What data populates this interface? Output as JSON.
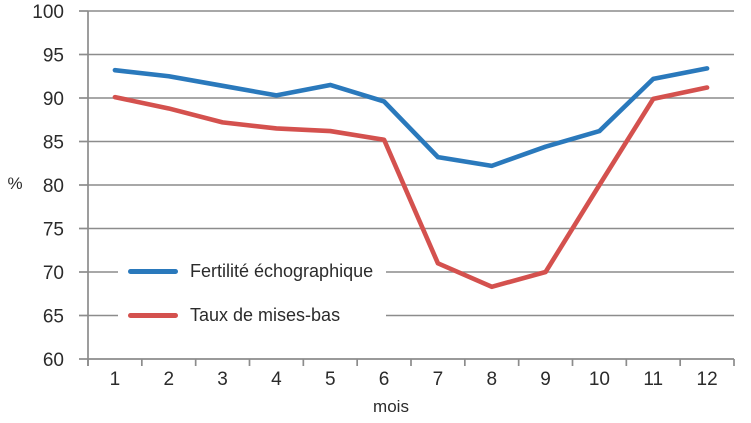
{
  "chart_data": {
    "type": "line",
    "x": [
      "1",
      "2",
      "3",
      "4",
      "5",
      "6",
      "7",
      "8",
      "9",
      "10",
      "11",
      "12"
    ],
    "series": [
      {
        "name": "Fertilité échographique",
        "color": "#2A79BC",
        "values": [
          93.2,
          92.5,
          91.4,
          90.3,
          91.5,
          89.6,
          83.2,
          82.2,
          84.4,
          86.2,
          92.2,
          93.4
        ]
      },
      {
        "name": "Taux de mises-bas",
        "color": "#D4514E",
        "values": [
          90.1,
          88.8,
          87.2,
          86.5,
          86.2,
          85.2,
          71.0,
          68.3,
          70.0,
          80.0,
          89.9,
          91.2
        ]
      }
    ],
    "title": "",
    "xlabel": "mois",
    "ylabel": "%",
    "ylim": [
      60,
      100
    ],
    "ytick_step": 5,
    "yticks": [
      "60",
      "65",
      "70",
      "75",
      "80",
      "85",
      "90",
      "95",
      "100"
    ],
    "grid": true,
    "legend_position": "inside-left",
    "gridline_color": "#8C8C8C",
    "text_color": "#2b2b2b",
    "background": "#FFFFFF"
  }
}
